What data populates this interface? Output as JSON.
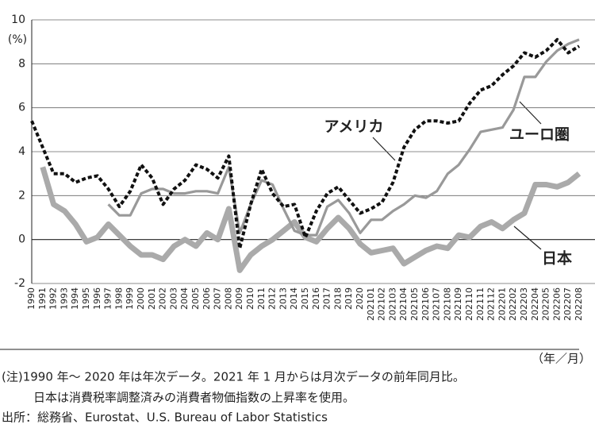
{
  "chart_data": {
    "type": "line",
    "y_unit": "(%)",
    "x_unit": "（年／月）",
    "categories": [
      "1990",
      "1991",
      "1992",
      "1993",
      "1994",
      "1995",
      "1996",
      "1997",
      "1998",
      "1999",
      "2000",
      "2001",
      "2002",
      "2003",
      "2004",
      "2005",
      "2006",
      "2007",
      "2008",
      "2009",
      "2010",
      "2011",
      "2012",
      "2013",
      "2014",
      "2015",
      "2016",
      "2017",
      "2018",
      "2019",
      "2020",
      "202101",
      "202102",
      "202103",
      "202104",
      "202105",
      "202106",
      "202107",
      "202108",
      "202109",
      "202110",
      "202111",
      "202112",
      "202201",
      "202202",
      "202203",
      "202204",
      "202205",
      "202206",
      "202207",
      "202208"
    ],
    "series": [
      {
        "name": "アメリカ",
        "color": "#111111",
        "values": [
          5.4,
          4.2,
          3.0,
          3.0,
          2.6,
          2.8,
          2.9,
          2.3,
          1.5,
          2.2,
          3.4,
          2.8,
          1.6,
          2.3,
          2.7,
          3.4,
          3.2,
          2.8,
          3.8,
          -0.4,
          1.6,
          3.2,
          2.1,
          1.5,
          1.6,
          0.1,
          1.3,
          2.1,
          2.4,
          1.8,
          1.2,
          1.4,
          1.7,
          2.6,
          4.2,
          5.0,
          5.4,
          5.4,
          5.3,
          5.4,
          6.2,
          6.8,
          7.0,
          7.5,
          7.9,
          8.5,
          8.3,
          8.6,
          9.1,
          8.5,
          8.8
        ]
      },
      {
        "name": "ユーロ圏",
        "color": "#999999",
        "values": [
          null,
          null,
          null,
          null,
          null,
          null,
          null,
          1.6,
          1.1,
          1.1,
          2.1,
          2.3,
          2.3,
          2.1,
          2.1,
          2.2,
          2.2,
          2.1,
          3.3,
          0.3,
          1.6,
          2.7,
          2.5,
          1.4,
          0.4,
          0.2,
          0.2,
          1.5,
          1.8,
          1.2,
          0.3,
          0.9,
          0.9,
          1.3,
          1.6,
          2.0,
          1.9,
          2.2,
          3.0,
          3.4,
          4.1,
          4.9,
          5.0,
          5.1,
          5.9,
          7.4,
          7.4,
          8.1,
          8.6,
          8.9,
          9.1
        ]
      },
      {
        "name": "日本",
        "color": "#aaaaaa",
        "values": [
          null,
          3.3,
          1.6,
          1.3,
          0.7,
          -0.1,
          0.1,
          0.7,
          0.2,
          -0.3,
          -0.7,
          -0.7,
          -0.9,
          -0.3,
          0.0,
          -0.3,
          0.3,
          0.0,
          1.4,
          -1.4,
          -0.7,
          -0.3,
          0.0,
          0.4,
          0.8,
          0.1,
          -0.1,
          0.5,
          1.0,
          0.5,
          -0.2,
          -0.6,
          -0.5,
          -0.4,
          -1.1,
          -0.8,
          -0.5,
          -0.3,
          -0.4,
          0.2,
          0.1,
          0.6,
          0.8,
          0.5,
          0.9,
          1.2,
          2.5,
          2.5,
          2.4,
          2.6,
          3.0
        ]
      }
    ],
    "ylim": [
      -2,
      10
    ],
    "yticks": [
      -2,
      0,
      2,
      4,
      6,
      8,
      10
    ],
    "grid": true,
    "notes": [
      "(注)1990 年～ 2020 年は年次データ。2021 年 1 月からは月次データの前年同月比。",
      "日本は消費税率調整済みの消費者物価指数の上昇率を使用。",
      "出所：総務省、Eurostat、U.S. Bureau of Labor Statistics"
    ]
  }
}
